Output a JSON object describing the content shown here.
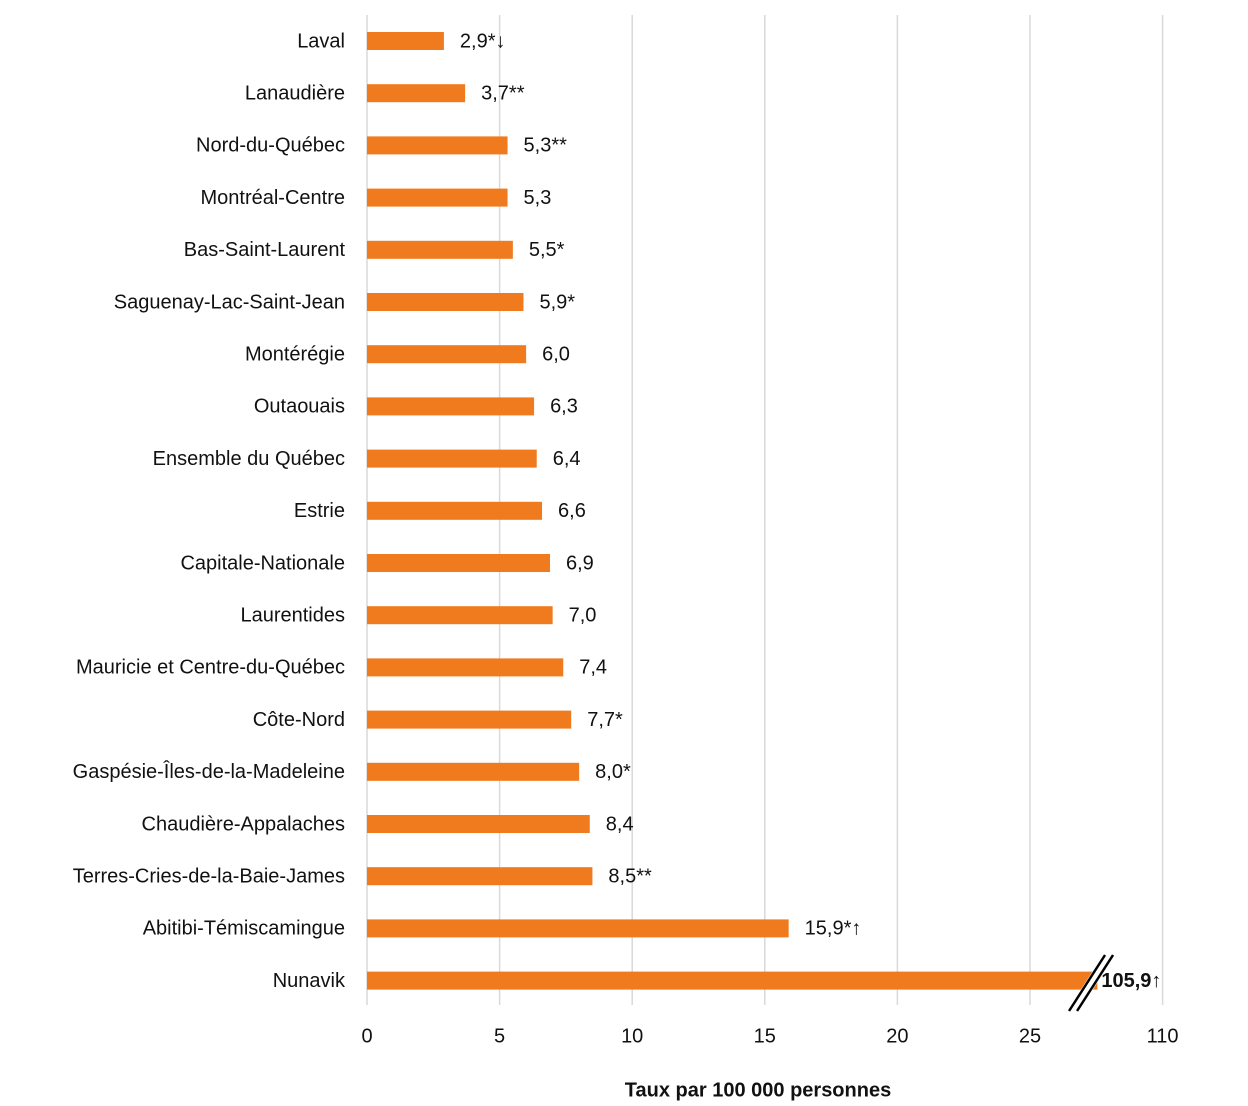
{
  "chart_data": {
    "type": "bar",
    "orientation": "horizontal",
    "x_label": "Taux par 100 000 personnes",
    "categories": [
      "Laval",
      "Lanaudière",
      "Nord-du-Québec",
      "Montréal-Centre",
      "Bas-Saint-Laurent",
      "Saguenay-Lac-Saint-Jean",
      "Montérégie",
      "Outaouais",
      "Ensemble du Québec",
      "Estrie",
      "Capitale-Nationale",
      "Laurentides",
      "Mauricie et Centre-du-Québec",
      "Côte-Nord",
      "Gaspésie-Îles-de-la-Madeleine",
      "Chaudière-Appalaches",
      "Terres-Cries-de-la-Baie-James",
      "Abitibi-Témiscamingue",
      "Nunavik"
    ],
    "values": [
      2.9,
      3.7,
      5.3,
      5.3,
      5.5,
      5.9,
      6.0,
      6.3,
      6.4,
      6.6,
      6.9,
      7.0,
      7.4,
      7.7,
      8.0,
      8.4,
      8.5,
      15.9,
      105.9
    ],
    "value_labels": [
      "2,9*↓",
      "3,7**",
      "5,3**",
      "5,3",
      "5,5*",
      "5,9*",
      "6,0",
      "6,3",
      "6,4",
      "6,6",
      "6,9",
      "7,0",
      "7,4",
      "7,7*",
      "8,0*",
      "8,4",
      "8,5**",
      "15,9*↑",
      "105,9↑"
    ],
    "color": "#f07a1e",
    "xlim": [
      0,
      110
    ],
    "xticks": [
      0,
      5,
      10,
      15,
      20,
      25,
      110
    ],
    "xbreak": [
      27,
      105
    ],
    "grid": true
  }
}
